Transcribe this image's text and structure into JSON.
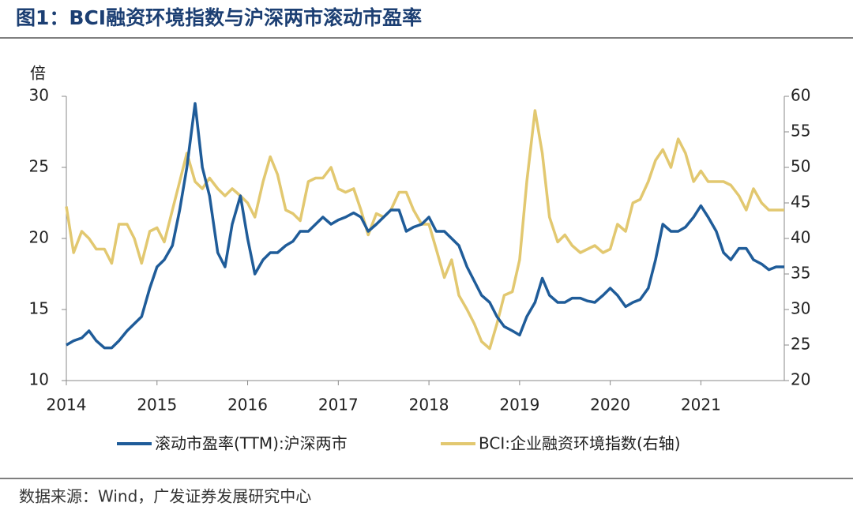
{
  "chart_data": {
    "type": "line",
    "title": "图1：BCI融资环境指数与沪深两市滚动市盈率",
    "y_label": "倍",
    "source": "数据来源：Wind，广发证券发展研究中心",
    "x": [
      2014,
      2014.08,
      2014.17,
      2014.25,
      2014.33,
      2014.42,
      2014.5,
      2014.58,
      2014.67,
      2014.75,
      2014.83,
      2014.92,
      2015,
      2015.08,
      2015.17,
      2015.25,
      2015.33,
      2015.42,
      2015.5,
      2015.58,
      2015.67,
      2015.75,
      2015.83,
      2015.92,
      2016,
      2016.08,
      2016.17,
      2016.25,
      2016.33,
      2016.42,
      2016.5,
      2016.58,
      2016.67,
      2016.75,
      2016.83,
      2016.92,
      2017,
      2017.08,
      2017.17,
      2017.25,
      2017.33,
      2017.42,
      2017.5,
      2017.58,
      2017.67,
      2017.75,
      2017.83,
      2017.92,
      2018,
      2018.08,
      2018.17,
      2018.25,
      2018.33,
      2018.42,
      2018.5,
      2018.58,
      2018.67,
      2018.75,
      2018.83,
      2018.92,
      2019,
      2019.08,
      2019.17,
      2019.25,
      2019.33,
      2019.42,
      2019.5,
      2019.58,
      2019.67,
      2019.75,
      2019.83,
      2019.92,
      2020,
      2020.08,
      2020.17,
      2020.25,
      2020.33,
      2020.42,
      2020.5,
      2020.58,
      2020.67,
      2020.75,
      2020.83,
      2020.92,
      2021,
      2021.08,
      2021.17,
      2021.25,
      2021.33,
      2021.42,
      2021.5,
      2021.58,
      2021.67,
      2021.75,
      2021.83,
      2021.92
    ],
    "xlim": [
      2014,
      2021.92
    ],
    "xticks": [
      2014,
      2015,
      2016,
      2017,
      2018,
      2019,
      2020,
      2021
    ],
    "ylim": [
      10,
      30
    ],
    "yticks": [
      10,
      15,
      20,
      25,
      30
    ],
    "y2lim": [
      20,
      60
    ],
    "y2ticks": [
      20,
      25,
      30,
      35,
      40,
      45,
      50,
      55,
      60
    ],
    "grid": false,
    "series": [
      {
        "name": "滚动市盈率(TTM):沪深两市",
        "color": "#1f5c99",
        "values": [
          12.5,
          12.8,
          13.0,
          13.5,
          12.8,
          12.3,
          12.3,
          12.8,
          13.5,
          14.0,
          14.5,
          16.5,
          18.0,
          18.5,
          19.5,
          22.0,
          25.0,
          29.5,
          25.0,
          23.0,
          19.0,
          18.0,
          21.0,
          23.0,
          20.0,
          17.5,
          18.5,
          19.0,
          19.0,
          19.5,
          19.8,
          20.5,
          20.5,
          21.0,
          21.5,
          21.0,
          21.3,
          21.5,
          21.8,
          21.5,
          20.5,
          21.0,
          21.5,
          22.0,
          22.0,
          20.5,
          20.8,
          21.0,
          21.5,
          20.5,
          20.5,
          20.0,
          19.5,
          18.0,
          17.0,
          16.0,
          15.5,
          14.5,
          13.8,
          13.5,
          13.2,
          14.5,
          15.5,
          17.2,
          16.0,
          15.5,
          15.5,
          15.8,
          15.8,
          15.6,
          15.5,
          16.0,
          16.5,
          16.0,
          15.2,
          15.5,
          15.7,
          16.5,
          18.5,
          21.0,
          20.5,
          20.5,
          20.8,
          21.5,
          22.3,
          21.5,
          20.5,
          19.0,
          18.5,
          19.3,
          19.3,
          18.5,
          18.2,
          17.8,
          18.0,
          18.0
        ]
      },
      {
        "name": "BCI:企业融资环境指数(右轴)",
        "color": "#e2c870",
        "axis": "y2",
        "values": [
          44.5,
          38,
          41,
          40,
          38.5,
          38.5,
          36.5,
          42,
          42,
          40,
          36.5,
          41,
          41.5,
          39.5,
          44,
          48,
          52,
          48,
          47,
          48.5,
          47,
          46,
          47,
          46,
          45,
          43,
          48,
          51.5,
          49,
          44,
          43.5,
          42.5,
          48,
          48.5,
          48.5,
          50,
          47,
          46.5,
          47,
          44,
          40.5,
          43.5,
          43,
          44,
          46.5,
          46.5,
          44,
          42,
          42,
          38.5,
          34.5,
          37,
          32,
          30,
          28,
          25.5,
          24.5,
          28,
          32,
          32.5,
          37,
          48,
          58,
          52,
          43,
          39.5,
          40.5,
          39,
          38,
          38.5,
          39,
          38,
          38.5,
          42,
          41,
          45,
          45.5,
          48,
          51,
          52.5,
          50,
          54,
          52,
          48,
          49.5,
          48,
          48,
          48,
          47.5,
          46,
          44,
          47,
          45,
          44,
          44,
          44
        ]
      }
    ]
  }
}
